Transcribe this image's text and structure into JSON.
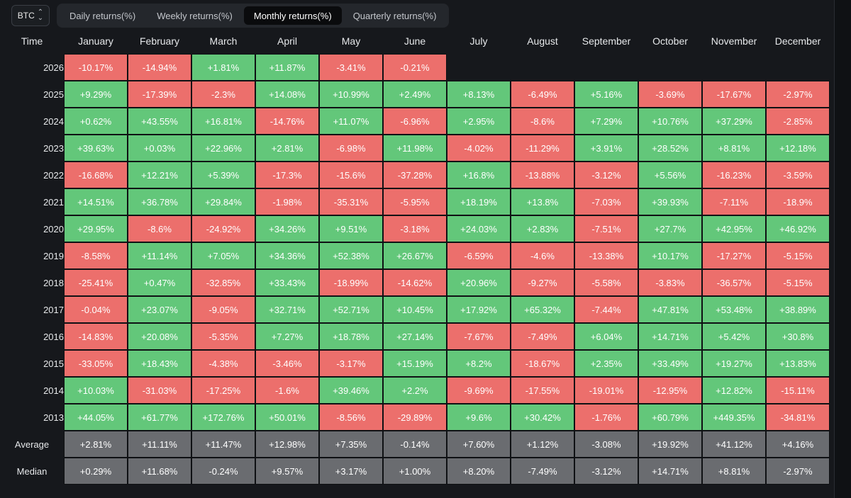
{
  "asset_selector": {
    "label": "BTC"
  },
  "tabs": [
    {
      "label": "Daily returns(%)",
      "active": false
    },
    {
      "label": "Weekly returns(%)",
      "active": false
    },
    {
      "label": "Monthly returns(%)",
      "active": true
    },
    {
      "label": "Quarterly returns(%)",
      "active": false
    }
  ],
  "colors": {
    "positive": "#63c77a",
    "negative": "#ec6f6c",
    "summary": "#6a6c70"
  },
  "table": {
    "corner_label": "Time",
    "months": [
      "January",
      "February",
      "March",
      "April",
      "May",
      "June",
      "July",
      "August",
      "September",
      "October",
      "November",
      "December"
    ],
    "rows": [
      {
        "year": "2026",
        "values": [
          "-10.17%",
          "-14.94%",
          "+1.81%",
          "+11.87%",
          "-3.41%",
          "-0.21%",
          "",
          "",
          "",
          "",
          "",
          ""
        ]
      },
      {
        "year": "2025",
        "values": [
          "+9.29%",
          "-17.39%",
          "-2.3%",
          "+14.08%",
          "+10.99%",
          "+2.49%",
          "+8.13%",
          "-6.49%",
          "+5.16%",
          "-3.69%",
          "-17.67%",
          "-2.97%"
        ]
      },
      {
        "year": "2024",
        "values": [
          "+0.62%",
          "+43.55%",
          "+16.81%",
          "-14.76%",
          "+11.07%",
          "-6.96%",
          "+2.95%",
          "-8.6%",
          "+7.29%",
          "+10.76%",
          "+37.29%",
          "-2.85%"
        ]
      },
      {
        "year": "2023",
        "values": [
          "+39.63%",
          "+0.03%",
          "+22.96%",
          "+2.81%",
          "-6.98%",
          "+11.98%",
          "-4.02%",
          "-11.29%",
          "+3.91%",
          "+28.52%",
          "+8.81%",
          "+12.18%"
        ]
      },
      {
        "year": "2022",
        "values": [
          "-16.68%",
          "+12.21%",
          "+5.39%",
          "-17.3%",
          "-15.6%",
          "-37.28%",
          "+16.8%",
          "-13.88%",
          "-3.12%",
          "+5.56%",
          "-16.23%",
          "-3.59%"
        ]
      },
      {
        "year": "2021",
        "values": [
          "+14.51%",
          "+36.78%",
          "+29.84%",
          "-1.98%",
          "-35.31%",
          "-5.95%",
          "+18.19%",
          "+13.8%",
          "-7.03%",
          "+39.93%",
          "-7.11%",
          "-18.9%"
        ]
      },
      {
        "year": "2020",
        "values": [
          "+29.95%",
          "-8.6%",
          "-24.92%",
          "+34.26%",
          "+9.51%",
          "-3.18%",
          "+24.03%",
          "+2.83%",
          "-7.51%",
          "+27.7%",
          "+42.95%",
          "+46.92%"
        ]
      },
      {
        "year": "2019",
        "values": [
          "-8.58%",
          "+11.14%",
          "+7.05%",
          "+34.36%",
          "+52.38%",
          "+26.67%",
          "-6.59%",
          "-4.6%",
          "-13.38%",
          "+10.17%",
          "-17.27%",
          "-5.15%"
        ]
      },
      {
        "year": "2018",
        "values": [
          "-25.41%",
          "+0.47%",
          "-32.85%",
          "+33.43%",
          "-18.99%",
          "-14.62%",
          "+20.96%",
          "-9.27%",
          "-5.58%",
          "-3.83%",
          "-36.57%",
          "-5.15%"
        ]
      },
      {
        "year": "2017",
        "values": [
          "-0.04%",
          "+23.07%",
          "-9.05%",
          "+32.71%",
          "+52.71%",
          "+10.45%",
          "+17.92%",
          "+65.32%",
          "-7.44%",
          "+47.81%",
          "+53.48%",
          "+38.89%"
        ]
      },
      {
        "year": "2016",
        "values": [
          "-14.83%",
          "+20.08%",
          "-5.35%",
          "+7.27%",
          "+18.78%",
          "+27.14%",
          "-7.67%",
          "-7.49%",
          "+6.04%",
          "+14.71%",
          "+5.42%",
          "+30.8%"
        ]
      },
      {
        "year": "2015",
        "values": [
          "-33.05%",
          "+18.43%",
          "-4.38%",
          "-3.46%",
          "-3.17%",
          "+15.19%",
          "+8.2%",
          "-18.67%",
          "+2.35%",
          "+33.49%",
          "+19.27%",
          "+13.83%"
        ]
      },
      {
        "year": "2014",
        "values": [
          "+10.03%",
          "-31.03%",
          "-17.25%",
          "-1.6%",
          "+39.46%",
          "+2.2%",
          "-9.69%",
          "-17.55%",
          "-19.01%",
          "-12.95%",
          "+12.82%",
          "-15.11%"
        ]
      },
      {
        "year": "2013",
        "values": [
          "+44.05%",
          "+61.77%",
          "+172.76%",
          "+50.01%",
          "-8.56%",
          "-29.89%",
          "+9.6%",
          "+30.42%",
          "-1.76%",
          "+60.79%",
          "+449.35%",
          "-34.81%"
        ]
      }
    ],
    "summary": [
      {
        "label": "Average",
        "values": [
          "+2.81%",
          "+11.11%",
          "+11.47%",
          "+12.98%",
          "+7.35%",
          "-0.14%",
          "+7.60%",
          "+1.12%",
          "-3.08%",
          "+19.92%",
          "+41.12%",
          "+4.16%"
        ]
      },
      {
        "label": "Median",
        "values": [
          "+0.29%",
          "+11.68%",
          "-0.24%",
          "+9.57%",
          "+3.17%",
          "+1.00%",
          "+8.20%",
          "-7.49%",
          "-3.12%",
          "+14.71%",
          "+8.81%",
          "-2.97%"
        ]
      }
    ]
  }
}
